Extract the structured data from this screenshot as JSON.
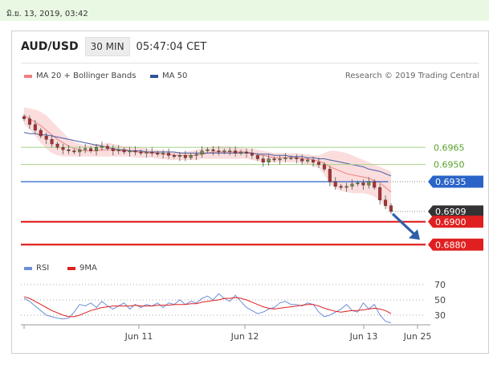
{
  "topbar": {
    "datetime": "มิ.ย. 13, 2019, 03:42"
  },
  "header": {
    "pair": "AUD/USD",
    "timeframe": "30 MIN",
    "time": "05:47:04 CET"
  },
  "legend": [
    {
      "label": "MA 20 + Bollinger Bands",
      "color": "#f08080"
    },
    {
      "label": "MA 50",
      "color": "#2f5597"
    }
  ],
  "credit": "Research © 2019 Trading Central",
  "rsi_legend": [
    {
      "label": "RSI",
      "color": "#6a8fd8"
    },
    {
      "label": "9MA",
      "color": "#e02020"
    }
  ],
  "chart_data": {
    "type": "line",
    "title": "AUD/USD",
    "x_ticks": [
      "Jun 11",
      "Jun 12",
      "Jun 13",
      "Jun 25"
    ],
    "y_levels": [
      {
        "value": 0.6965,
        "label": "0.6965",
        "kind": "target",
        "color": "#5aa02c"
      },
      {
        "value": 0.695,
        "label": "0.6950",
        "kind": "target",
        "color": "#5aa02c"
      },
      {
        "value": 0.6935,
        "label": "0.6935",
        "kind": "pivot",
        "color": "#2a64c8"
      },
      {
        "value": 0.6909,
        "label": "0.6909",
        "kind": "last",
        "color": "#333333"
      },
      {
        "value": 0.69,
        "label": "0.6900",
        "kind": "support",
        "color": "#e02020"
      },
      {
        "value": 0.688,
        "label": "0.6880",
        "kind": "support",
        "color": "#e02020"
      }
    ],
    "price": [
      0.699,
      0.6985,
      0.698,
      0.6975,
      0.6972,
      0.6968,
      0.6965,
      0.6963,
      0.6962,
      0.6961,
      0.6963,
      0.6964,
      0.6962,
      0.6965,
      0.6966,
      0.6964,
      0.6962,
      0.6963,
      0.6961,
      0.6962,
      0.6961,
      0.696,
      0.6961,
      0.696,
      0.6959,
      0.696,
      0.6958,
      0.6957,
      0.6958,
      0.6956,
      0.6958,
      0.6959,
      0.6962,
      0.6963,
      0.6962,
      0.6961,
      0.6962,
      0.6962,
      0.696,
      0.6961,
      0.696,
      0.6958,
      0.6955,
      0.6952,
      0.6955,
      0.6954,
      0.6955,
      0.6956,
      0.6956,
      0.6955,
      0.6953,
      0.6954,
      0.6952,
      0.695,
      0.6946,
      0.6935,
      0.6931,
      0.693,
      0.6931,
      0.6933,
      0.6934,
      0.6932,
      0.6935,
      0.693,
      0.6919,
      0.6914,
      0.6909
    ],
    "ma20": [
      0.6993,
      0.699,
      0.6987,
      0.6984,
      0.698,
      0.6976,
      0.6972,
      0.6969,
      0.6966,
      0.6964,
      0.6963,
      0.6962,
      0.6962,
      0.6962,
      0.6963,
      0.6963,
      0.6963,
      0.6962,
      0.6962,
      0.6962,
      0.6961,
      0.6961,
      0.696,
      0.696,
      0.696,
      0.6959,
      0.6959,
      0.6958,
      0.6958,
      0.6958,
      0.6958,
      0.6958,
      0.6959,
      0.696,
      0.6961,
      0.6961,
      0.6961,
      0.6961,
      0.6961,
      0.6961,
      0.6961,
      0.696,
      0.6959,
      0.6958,
      0.6957,
      0.6956,
      0.6956,
      0.6956,
      0.6956,
      0.6956,
      0.6955,
      0.6955,
      0.6954,
      0.6953,
      0.6951,
      0.6948,
      0.6946,
      0.6944,
      0.6942,
      0.6941,
      0.694,
      0.6939,
      0.6938,
      0.6936,
      0.6934,
      0.693,
      0.6926
    ],
    "bb_upper": [
      0.7,
      0.6999,
      0.6998,
      0.6996,
      0.6993,
      0.6988,
      0.6983,
      0.6978,
      0.6973,
      0.697,
      0.6968,
      0.6967,
      0.6967,
      0.6968,
      0.6968,
      0.6969,
      0.6968,
      0.6967,
      0.6966,
      0.6966,
      0.6965,
      0.6965,
      0.6964,
      0.6963,
      0.6963,
      0.6962,
      0.6962,
      0.6961,
      0.6961,
      0.6961,
      0.6962,
      0.6963,
      0.6964,
      0.6965,
      0.6966,
      0.6966,
      0.6966,
      0.6966,
      0.6965,
      0.6965,
      0.6964,
      0.6964,
      0.6963,
      0.6962,
      0.6961,
      0.696,
      0.696,
      0.696,
      0.696,
      0.696,
      0.6959,
      0.6959,
      0.6958,
      0.6958,
      0.696,
      0.6962,
      0.6962,
      0.6961,
      0.696,
      0.6958,
      0.6956,
      0.6954,
      0.6952,
      0.695,
      0.6948,
      0.6946,
      0.6944
    ],
    "bb_lower": [
      0.6985,
      0.6981,
      0.6975,
      0.6969,
      0.6964,
      0.696,
      0.6958,
      0.6957,
      0.6957,
      0.6957,
      0.6957,
      0.6957,
      0.6957,
      0.6957,
      0.6957,
      0.6957,
      0.6957,
      0.6957,
      0.6957,
      0.6957,
      0.6956,
      0.6956,
      0.6956,
      0.6956,
      0.6955,
      0.6955,
      0.6954,
      0.6954,
      0.6954,
      0.6954,
      0.6954,
      0.6954,
      0.6955,
      0.6955,
      0.6955,
      0.6955,
      0.6955,
      0.6955,
      0.6955,
      0.6955,
      0.6955,
      0.6954,
      0.6953,
      0.6952,
      0.6952,
      0.6952,
      0.6952,
      0.6952,
      0.6952,
      0.6952,
      0.6951,
      0.695,
      0.6949,
      0.6947,
      0.6941,
      0.6933,
      0.6929,
      0.6927,
      0.6926,
      0.6925,
      0.6925,
      0.6925,
      0.6924,
      0.6922,
      0.6918,
      0.6913,
      0.6908
    ],
    "ma50": [
      0.6978,
      0.6977,
      0.6977,
      0.6976,
      0.6976,
      0.6975,
      0.6974,
      0.6973,
      0.6972,
      0.6971,
      0.697,
      0.6969,
      0.6968,
      0.6967,
      0.6966,
      0.6965,
      0.6964,
      0.6963,
      0.6963,
      0.6962,
      0.6962,
      0.6962,
      0.6961,
      0.6961,
      0.6961,
      0.6961,
      0.6961,
      0.6961,
      0.696,
      0.696,
      0.696,
      0.696,
      0.696,
      0.696,
      0.696,
      0.696,
      0.696,
      0.696,
      0.696,
      0.696,
      0.696,
      0.696,
      0.6959,
      0.6959,
      0.6959,
      0.6958,
      0.6958,
      0.6958,
      0.6957,
      0.6957,
      0.6957,
      0.6956,
      0.6956,
      0.6955,
      0.6955,
      0.6954,
      0.6953,
      0.6952,
      0.6951,
      0.695,
      0.6949,
      0.6948,
      0.6946,
      0.6945,
      0.6944,
      0.6942,
      0.694
    ],
    "forecast": {
      "from": 0.6909,
      "to": 0.688
    },
    "rsi": {
      "levels": [
        70,
        50,
        30
      ],
      "rsi": [
        52,
        48,
        42,
        36,
        30,
        28,
        26,
        25,
        26,
        34,
        44,
        42,
        46,
        40,
        48,
        42,
        38,
        42,
        46,
        38,
        44,
        40,
        44,
        42,
        46,
        40,
        46,
        44,
        50,
        44,
        48,
        46,
        52,
        55,
        50,
        58,
        52,
        48,
        56,
        48,
        40,
        36,
        32,
        34,
        38,
        40,
        46,
        48,
        44,
        44,
        42,
        46,
        44,
        34,
        28,
        30,
        34,
        38,
        44,
        36,
        34,
        46,
        38,
        44,
        30,
        22,
        20
      ],
      "ma9": [
        54,
        52,
        48,
        44,
        40,
        36,
        33,
        30,
        28,
        28,
        30,
        33,
        36,
        38,
        40,
        41,
        42,
        42,
        42,
        42,
        43,
        42,
        42,
        42,
        43,
        43,
        43,
        44,
        44,
        44,
        45,
        45,
        47,
        48,
        49,
        50,
        52,
        52,
        53,
        52,
        50,
        47,
        44,
        41,
        39,
        38,
        39,
        40,
        41,
        42,
        43,
        44,
        44,
        42,
        39,
        37,
        35,
        34,
        35,
        36,
        36,
        37,
        38,
        39,
        38,
        36,
        32
      ]
    }
  }
}
